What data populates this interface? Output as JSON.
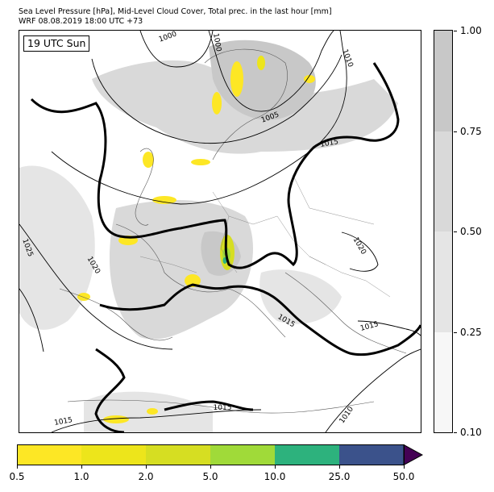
{
  "header": {
    "title_line1": "Sea Level Pressure [hPa], Mid-Level Cloud Cover, Total prec. in the last hour [mm]",
    "title_line2": "WRF 08.08.2019 18:00 UTC +73"
  },
  "map": {
    "time_label": "19 UTC Sun",
    "isobar_labels": [
      "1000",
      "1000",
      "1010",
      "1005",
      "1015",
      "1020",
      "1025",
      "1020",
      "1015",
      "1015",
      "1015",
      "1015",
      "1010"
    ],
    "colors": {
      "land": "#ffffff",
      "sea": "#ffffff",
      "coast": "#444444",
      "borders": "#555555",
      "isobar": "#000000",
      "isobar_1015_bold": "#000000"
    }
  },
  "cloud_colorbar": {
    "tick_labels": [
      "0.10",
      "0.25",
      "0.50",
      "0.75",
      "1.00"
    ],
    "bounds": [
      0.1,
      0.25,
      0.5,
      0.75,
      1.0
    ],
    "colors": [
      "#f7f7f7",
      "#e5e5e5",
      "#d9d9d9",
      "#c8c8c8"
    ]
  },
  "precip_colorbar": {
    "tick_labels": [
      "0.5",
      "1.0",
      "2.0",
      "5.0",
      "10.0",
      "25.0",
      "50.0"
    ],
    "bounds": [
      0.5,
      1.0,
      2.0,
      5.0,
      10.0,
      25.0,
      50.0
    ],
    "colors": [
      "#fde725",
      "#ede51b",
      "#d6de22",
      "#a0da39",
      "#2db27d",
      "#3b528b"
    ],
    "extend_color": "#440154"
  }
}
